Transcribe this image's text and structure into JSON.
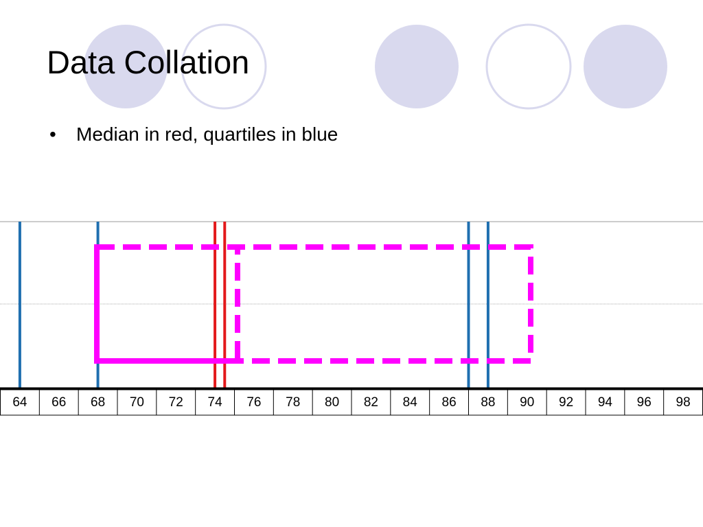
{
  "title": "Data Collation",
  "bullets": [
    "Median in red, quartiles in blue"
  ],
  "number_line": {
    "ticks": [
      64,
      66,
      68,
      70,
      72,
      74,
      76,
      78,
      80,
      82,
      84,
      86,
      88,
      90,
      92,
      94,
      96,
      98
    ],
    "markers": [
      {
        "value": 64,
        "color": "#1f6fb0"
      },
      {
        "value": 68,
        "color": "#1f6fb0"
      },
      {
        "value": 74,
        "color": "#e3191b"
      },
      {
        "value": 74.5,
        "color": "#e3191b"
      },
      {
        "value": 87,
        "color": "#1f6fb0"
      },
      {
        "value": 88,
        "color": "#1f6fb0"
      }
    ]
  }
}
